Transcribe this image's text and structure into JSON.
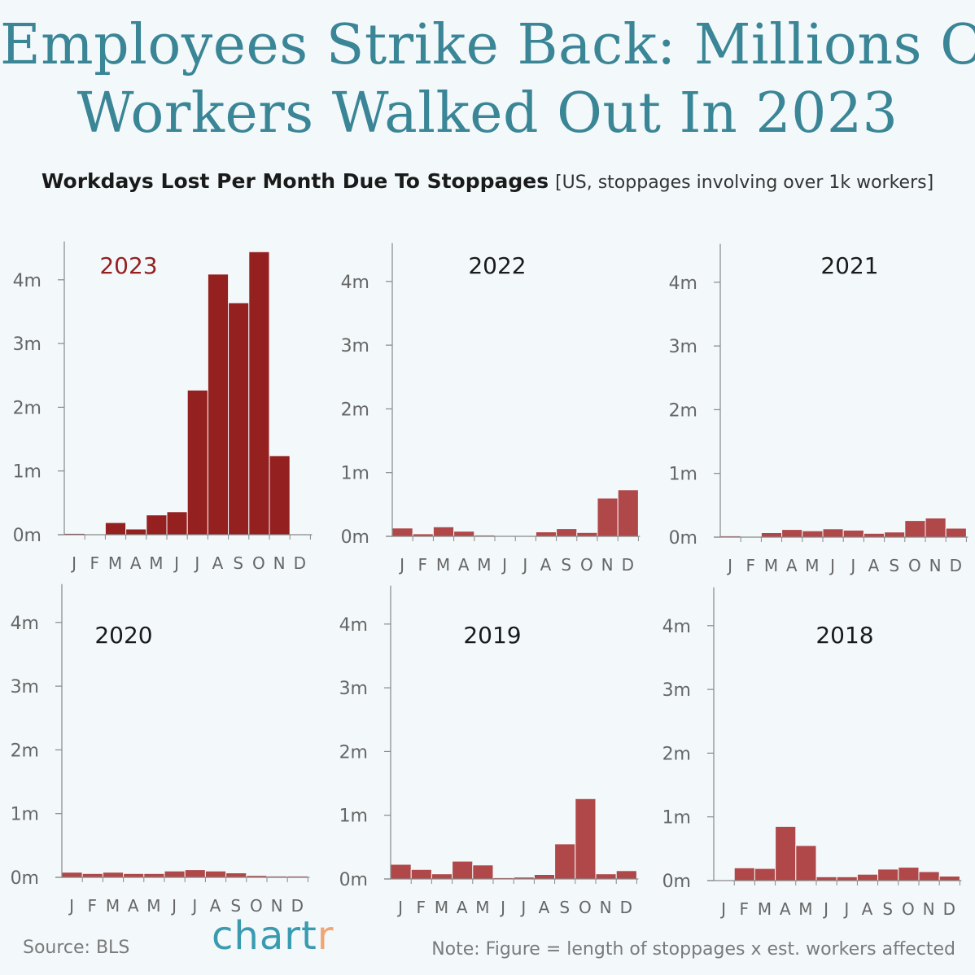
{
  "title": {
    "line1": "Employees Strike Back: Millions Of",
    "line2": "Workers Walked Out In 2023"
  },
  "subtitle": {
    "bold": "Workdays Lost Per Month Due To Stoppages",
    "light": "[US, stoppages involving over 1k workers]"
  },
  "footer": {
    "source": "Source: BLS",
    "logo_main": "chart",
    "logo_end": "r",
    "note": "Note: Figure = length of stoppages x est. workers affected"
  },
  "colors": {
    "highlight_bar": "#942020",
    "bar": "#b0484a",
    "highlight_title": "#942020",
    "axis": "#888888",
    "tick_label": "#666666",
    "title_text": "#3a8596"
  },
  "chart_data": [
    {
      "type": "bar",
      "title": "2023",
      "highlight": true,
      "categories": [
        "J",
        "F",
        "M",
        "A",
        "M",
        "J",
        "J",
        "A",
        "S",
        "O",
        "N",
        "D"
      ],
      "values": [
        0.02,
        0.0,
        0.19,
        0.09,
        0.31,
        0.36,
        2.27,
        4.09,
        3.64,
        4.44,
        1.24,
        0.0
      ],
      "ylabel": "",
      "ylim": [
        0,
        4.5
      ],
      "yticks": [
        0,
        1,
        2,
        3,
        4
      ],
      "ytick_labels": [
        "0m",
        "1m",
        "2m",
        "3m",
        "4m"
      ]
    },
    {
      "type": "bar",
      "title": "2022",
      "highlight": false,
      "categories": [
        "J",
        "F",
        "M",
        "A",
        "M",
        "J",
        "J",
        "A",
        "S",
        "O",
        "N",
        "D"
      ],
      "values": [
        0.13,
        0.04,
        0.15,
        0.08,
        0.02,
        0.0,
        0.0,
        0.07,
        0.12,
        0.06,
        0.6,
        0.73
      ],
      "ylim": [
        0,
        4.5
      ],
      "yticks": [
        0,
        1,
        2,
        3,
        4
      ],
      "ytick_labels": [
        "0m",
        "1m",
        "2m",
        "3m",
        "4m"
      ]
    },
    {
      "type": "bar",
      "title": "2021",
      "highlight": false,
      "categories": [
        "J",
        "F",
        "M",
        "A",
        "M",
        "J",
        "J",
        "A",
        "S",
        "O",
        "N",
        "D"
      ],
      "values": [
        0.02,
        0.01,
        0.07,
        0.12,
        0.1,
        0.13,
        0.11,
        0.06,
        0.08,
        0.26,
        0.3,
        0.14
      ],
      "ylim": [
        0,
        4.5
      ],
      "yticks": [
        0,
        1,
        2,
        3,
        4
      ],
      "ytick_labels": [
        "0m",
        "1m",
        "2m",
        "3m",
        "4m"
      ]
    },
    {
      "type": "bar",
      "title": "2020",
      "highlight": false,
      "categories": [
        "J",
        "F",
        "M",
        "A",
        "M",
        "J",
        "J",
        "A",
        "S",
        "O",
        "N",
        "D"
      ],
      "values": [
        0.08,
        0.06,
        0.08,
        0.06,
        0.06,
        0.1,
        0.12,
        0.1,
        0.07,
        0.03,
        0.02,
        0.02
      ],
      "ylim": [
        0,
        4.5
      ],
      "yticks": [
        0,
        1,
        2,
        3,
        4
      ],
      "ytick_labels": [
        "0m",
        "1m",
        "2m",
        "3m",
        "4m"
      ]
    },
    {
      "type": "bar",
      "title": "2019",
      "highlight": false,
      "categories": [
        "J",
        "F",
        "M",
        "A",
        "M",
        "J",
        "J",
        "A",
        "S",
        "O",
        "N",
        "D"
      ],
      "values": [
        0.23,
        0.15,
        0.08,
        0.28,
        0.22,
        0.02,
        0.03,
        0.07,
        0.55,
        1.26,
        0.08,
        0.13
      ],
      "ylim": [
        0,
        4.5
      ],
      "yticks": [
        0,
        1,
        2,
        3,
        4
      ],
      "ytick_labels": [
        "0m",
        "1m",
        "2m",
        "3m",
        "4m"
      ]
    },
    {
      "type": "bar",
      "title": "2018",
      "highlight": false,
      "categories": [
        "J",
        "F",
        "M",
        "A",
        "M",
        "J",
        "J",
        "A",
        "S",
        "O",
        "N",
        "D"
      ],
      "values": [
        0.01,
        0.2,
        0.19,
        0.85,
        0.55,
        0.06,
        0.06,
        0.1,
        0.18,
        0.21,
        0.14,
        0.07
      ],
      "ylim": [
        0,
        4.5
      ],
      "yticks": [
        0,
        1,
        2,
        3,
        4
      ],
      "ytick_labels": [
        "0m",
        "1m",
        "2m",
        "3m",
        "4m"
      ]
    }
  ]
}
